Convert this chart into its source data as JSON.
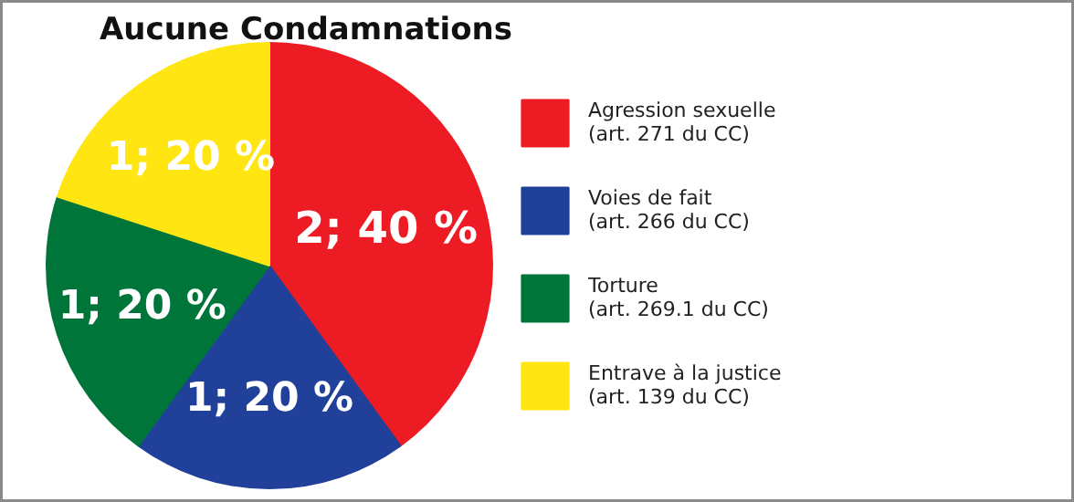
{
  "chart_data": {
    "type": "pie",
    "title": "Aucune Condamnations",
    "categories": [
      "Agression sexuelle\n(art. 271 du CC)",
      "Voies de fait\n(art. 266 du CC)",
      "Torture\n(art. 269.1 du CC)",
      "Entrave à la justice\n(art. 139 du CC)"
    ],
    "values": [
      2,
      1,
      1,
      1
    ],
    "colors": [
      "#ed1c24",
      "#21409a",
      "#00753a",
      "#ffe512"
    ],
    "value_labels": [
      "2; 40 %",
      "1; 20 %",
      "1; 20 %",
      "1; 20 %"
    ],
    "legend": "right"
  }
}
